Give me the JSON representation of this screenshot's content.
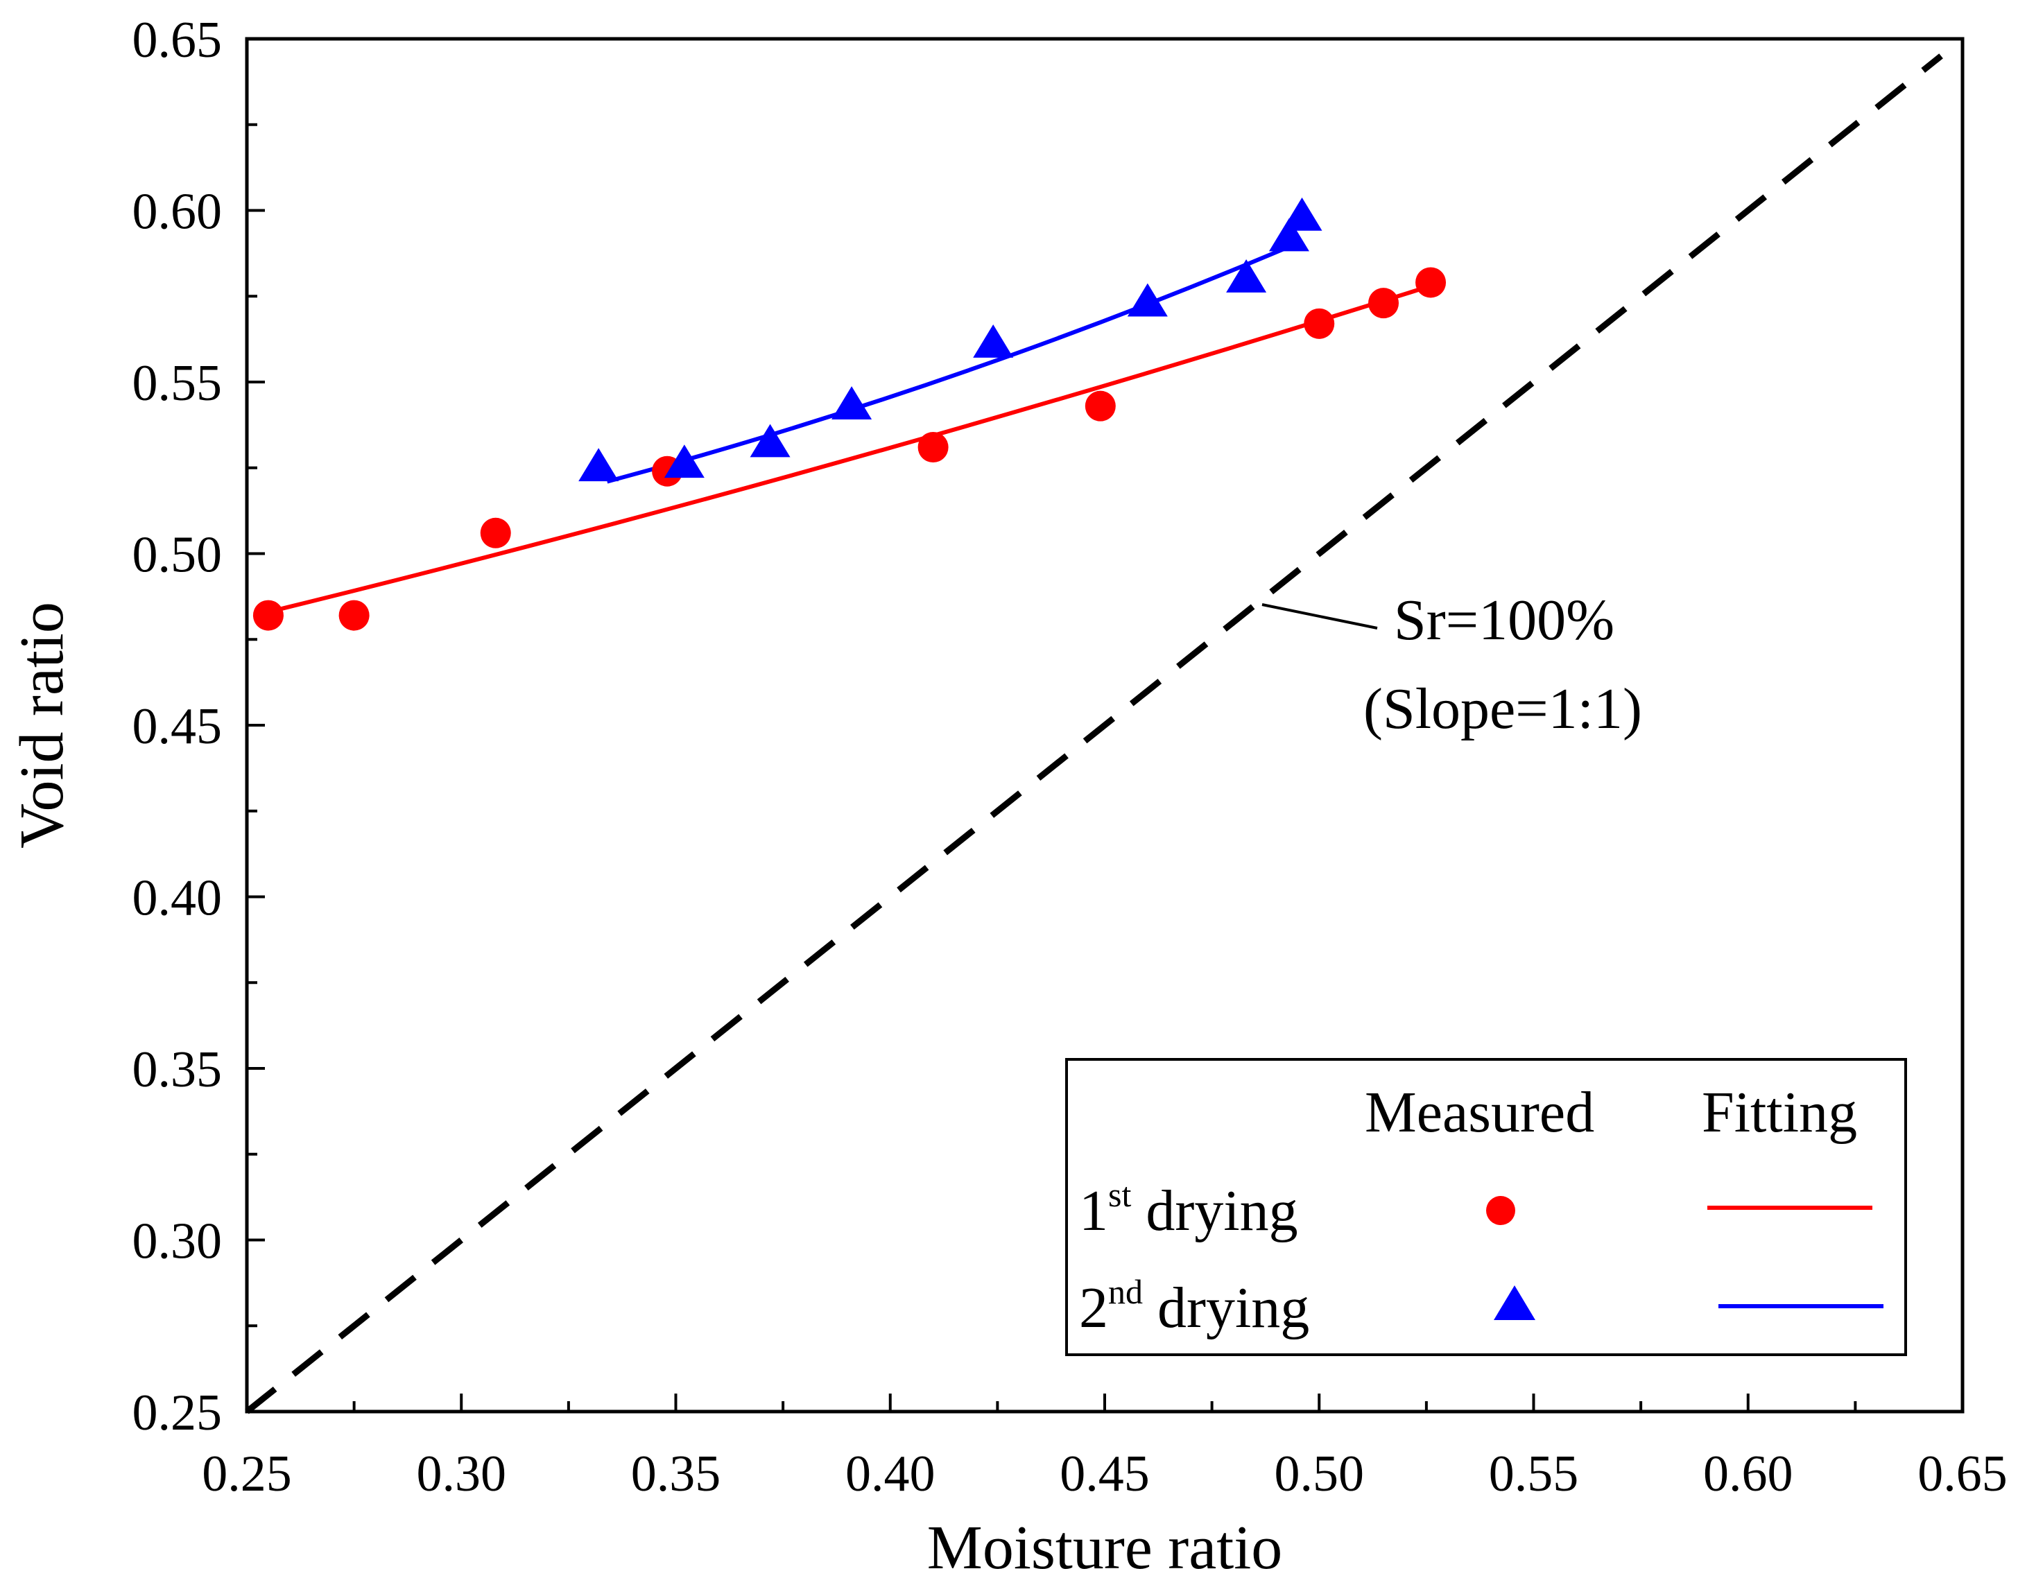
{
  "chart_data": {
    "type": "scatter",
    "title": "",
    "xlabel": "Moisture ratio",
    "ylabel": "Void ratio",
    "xlim": [
      0.25,
      0.65
    ],
    "ylim": [
      0.25,
      0.65
    ],
    "xticks": [
      "0.25",
      "0.30",
      "0.35",
      "0.40",
      "0.45",
      "0.50",
      "0.55",
      "0.60",
      "0.65"
    ],
    "yticks": [
      "0.25",
      "0.30",
      "0.35",
      "0.40",
      "0.45",
      "0.50",
      "0.55",
      "0.60",
      "0.65"
    ],
    "grid": false,
    "legend_position": "bottom-right",
    "legend": {
      "header_measured": "Measured",
      "header_fitting": "Fitting"
    },
    "series": [
      {
        "name": "1st drying",
        "name_base": "1",
        "name_sup": "st",
        "name_rest": " drying",
        "marker": "circle",
        "color": "#ff0000",
        "x": [
          0.255,
          0.275,
          0.308,
          0.348,
          0.41,
          0.449,
          0.5,
          0.515,
          0.526
        ],
        "y": [
          0.482,
          0.482,
          0.506,
          0.524,
          0.531,
          0.543,
          0.567,
          0.573,
          0.579
        ],
        "fit_x": [
          0.255,
          0.526
        ],
        "fit_y": [
          0.483,
          0.578
        ],
        "fit_curvature": 0.006
      },
      {
        "name": "2nd drying",
        "name_base": "2",
        "name_sup": "nd",
        "name_rest": " drying",
        "marker": "triangle",
        "color": "#0000ff",
        "x": [
          0.332,
          0.352,
          0.372,
          0.391,
          0.424,
          0.46,
          0.483,
          0.493,
          0.496
        ],
        "y": [
          0.525,
          0.526,
          0.532,
          0.543,
          0.561,
          0.573,
          0.58,
          0.592,
          0.598
        ],
        "fit_x": [
          0.334,
          0.496
        ],
        "fit_y": [
          0.521,
          0.591
        ],
        "fit_curvature": 0.008
      }
    ],
    "reference_line": {
      "label_line1": "Sr=100%",
      "label_line2": "(Slope=1:1)",
      "x": [
        0.25,
        0.645
      ],
      "y": [
        0.25,
        0.645
      ],
      "color": "#000000"
    }
  }
}
